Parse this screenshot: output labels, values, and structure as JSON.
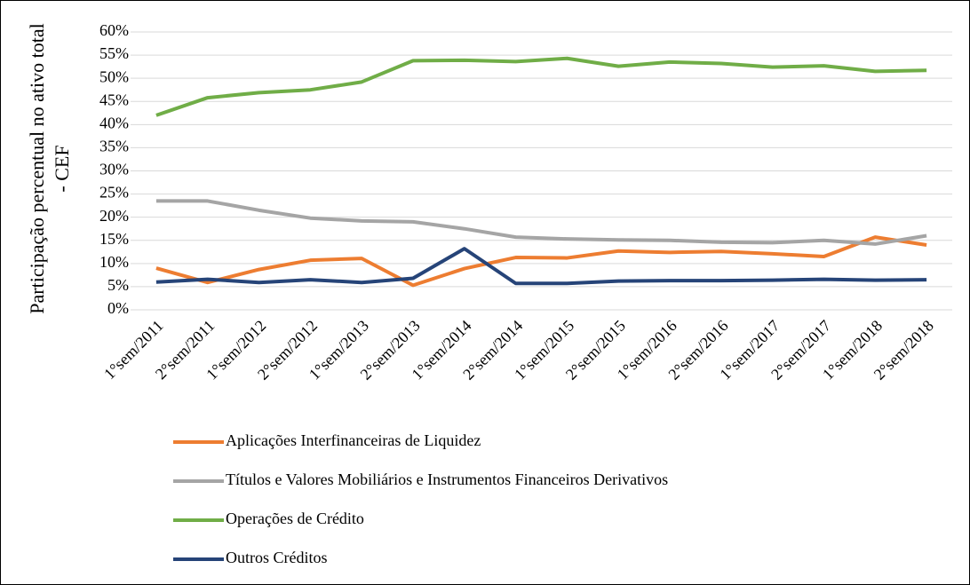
{
  "chart_data": {
    "type": "line",
    "y_label": [
      "Participação percentual no ativo total",
      "- CEF"
    ],
    "categories": [
      "1°sem/2011",
      "2°sem/2011",
      "1°sem/2012",
      "2°sem/2012",
      "1°sem/2013",
      "2°sem/2013",
      "1°sem/2014",
      "2°sem/2014",
      "1°sem/2015",
      "2°sem/2015",
      "1°sem/2016",
      "2°sem/2016",
      "1°sem/2017",
      "2°sem/2017",
      "1°sem/2018",
      "2°sem/2018"
    ],
    "series": [
      {
        "name": "Aplicações Interfinanceiras de Liquidez",
        "color": "#ed7d31",
        "values": [
          9.0,
          5.9,
          8.7,
          10.7,
          11.1,
          5.3,
          8.9,
          11.3,
          11.2,
          12.7,
          12.4,
          12.6,
          12.1,
          11.5,
          15.7,
          14.0
        ]
      },
      {
        "name": "Títulos e Valores Mobiliários e Instrumentos Financeiros Derivativos",
        "color": "#a5a5a5",
        "values": [
          23.5,
          23.5,
          21.5,
          19.8,
          19.2,
          19.0,
          17.5,
          15.7,
          15.3,
          15.1,
          15.0,
          14.6,
          14.5,
          15.0,
          14.2,
          16.0
        ]
      },
      {
        "name": "Operações de Crédito",
        "color": "#70ad47",
        "values": [
          42.0,
          45.8,
          46.9,
          47.5,
          49.2,
          53.8,
          53.9,
          53.6,
          54.3,
          52.6,
          53.5,
          53.2,
          52.4,
          52.7,
          51.5,
          51.7
        ]
      },
      {
        "name": "Outros Créditos",
        "color": "#264478",
        "values": [
          6.0,
          6.6,
          5.9,
          6.5,
          5.9,
          6.8,
          13.2,
          5.7,
          5.7,
          6.2,
          6.3,
          6.3,
          6.4,
          6.6,
          6.4,
          6.5
        ]
      }
    ],
    "ylim": [
      0,
      60
    ],
    "yticks": [
      {
        "value": 0,
        "label": "0%"
      },
      {
        "value": 5,
        "label": "5%"
      },
      {
        "value": 10,
        "label": "10%"
      },
      {
        "value": 15,
        "label": "15%"
      },
      {
        "value": 20,
        "label": "20%"
      },
      {
        "value": 25,
        "label": "25%"
      },
      {
        "value": 30,
        "label": "30%"
      },
      {
        "value": 35,
        "label": "35%"
      },
      {
        "value": 40,
        "label": "40%"
      },
      {
        "value": 45,
        "label": "45%"
      },
      {
        "value": 50,
        "label": "50%"
      },
      {
        "value": 55,
        "label": "55%"
      },
      {
        "value": 60,
        "label": "60%"
      }
    ],
    "grid": true
  }
}
